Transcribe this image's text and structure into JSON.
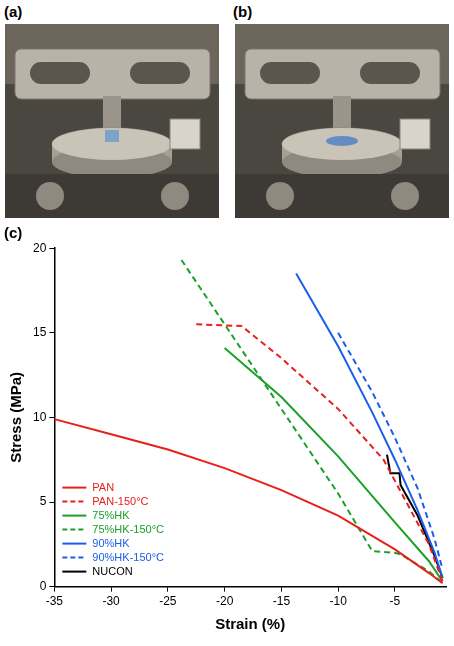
{
  "panels": [
    "(a)",
    "(b)",
    "(c)"
  ],
  "chart_data": {
    "type": "line",
    "x_label": "Strain (%)",
    "y_label": "Stress (MPa)",
    "xlim": [
      -35,
      -0.5
    ],
    "xticks": [
      -35,
      -30,
      -25,
      -20,
      -15,
      -10,
      -5
    ],
    "ylim": [
      0,
      20
    ],
    "yticks": [
      0,
      5,
      10,
      15,
      20
    ],
    "grid": false,
    "legend": "lower left",
    "series": [
      {
        "name": "PAN",
        "color": "#e8201c",
        "line_style": "solid",
        "x": [
          -35,
          -30,
          -25,
          -20,
          -15,
          -10,
          -5,
          -2,
          -0.8
        ],
        "values": [
          9.9,
          9.0,
          8.1,
          7.0,
          5.7,
          4.2,
          2.2,
          0.8,
          0.2
        ]
      },
      {
        "name": "PAN-150°C",
        "color": "#e8201c",
        "line_style": "dashed",
        "x": [
          -22.5,
          -18.5,
          -15,
          -10,
          -6,
          -4,
          -2,
          -0.8
        ],
        "values": [
          15.5,
          15.4,
          13.5,
          10.5,
          7.5,
          5.0,
          2.5,
          0.3
        ]
      },
      {
        "name": "75%HK",
        "color": "#1aa12a",
        "line_style": "solid",
        "x": [
          -20,
          -15,
          -10,
          -5,
          -2,
          -0.8
        ],
        "values": [
          14.1,
          11.2,
          7.7,
          3.8,
          1.5,
          0.3
        ]
      },
      {
        "name": "75%HK-150°C",
        "color": "#1aa12a",
        "line_style": "dashed",
        "x": [
          -23.8,
          -20,
          -15,
          -10,
          -7,
          -5,
          -4.5,
          -2,
          -0.8
        ],
        "values": [
          19.3,
          15.5,
          10.5,
          5.5,
          2.1,
          2.0,
          1.9,
          0.9,
          0.2
        ]
      },
      {
        "name": "90%HK",
        "color": "#1c5ee8",
        "line_style": "solid",
        "x": [
          -13.7,
          -10,
          -7,
          -5,
          -3,
          -1.5,
          -0.8
        ],
        "values": [
          18.5,
          14.2,
          10.3,
          7.5,
          4.5,
          2.0,
          0.5
        ]
      },
      {
        "name": "90%HK-150°C",
        "color": "#1c5ee8",
        "line_style": "dashed",
        "x": [
          -10,
          -7,
          -5,
          -3,
          -1.5,
          -0.8
        ],
        "values": [
          15.0,
          11.5,
          8.8,
          5.8,
          2.8,
          1.0
        ]
      },
      {
        "name": "NUCON",
        "color": "#000000",
        "line_style": "solid",
        "x": [
          -5.7,
          -5.4,
          -4.6,
          -4.5,
          -3,
          -1.5,
          -0.8
        ],
        "values": [
          7.8,
          6.7,
          6.7,
          6.0,
          4.2,
          1.8,
          0.5
        ]
      }
    ]
  }
}
